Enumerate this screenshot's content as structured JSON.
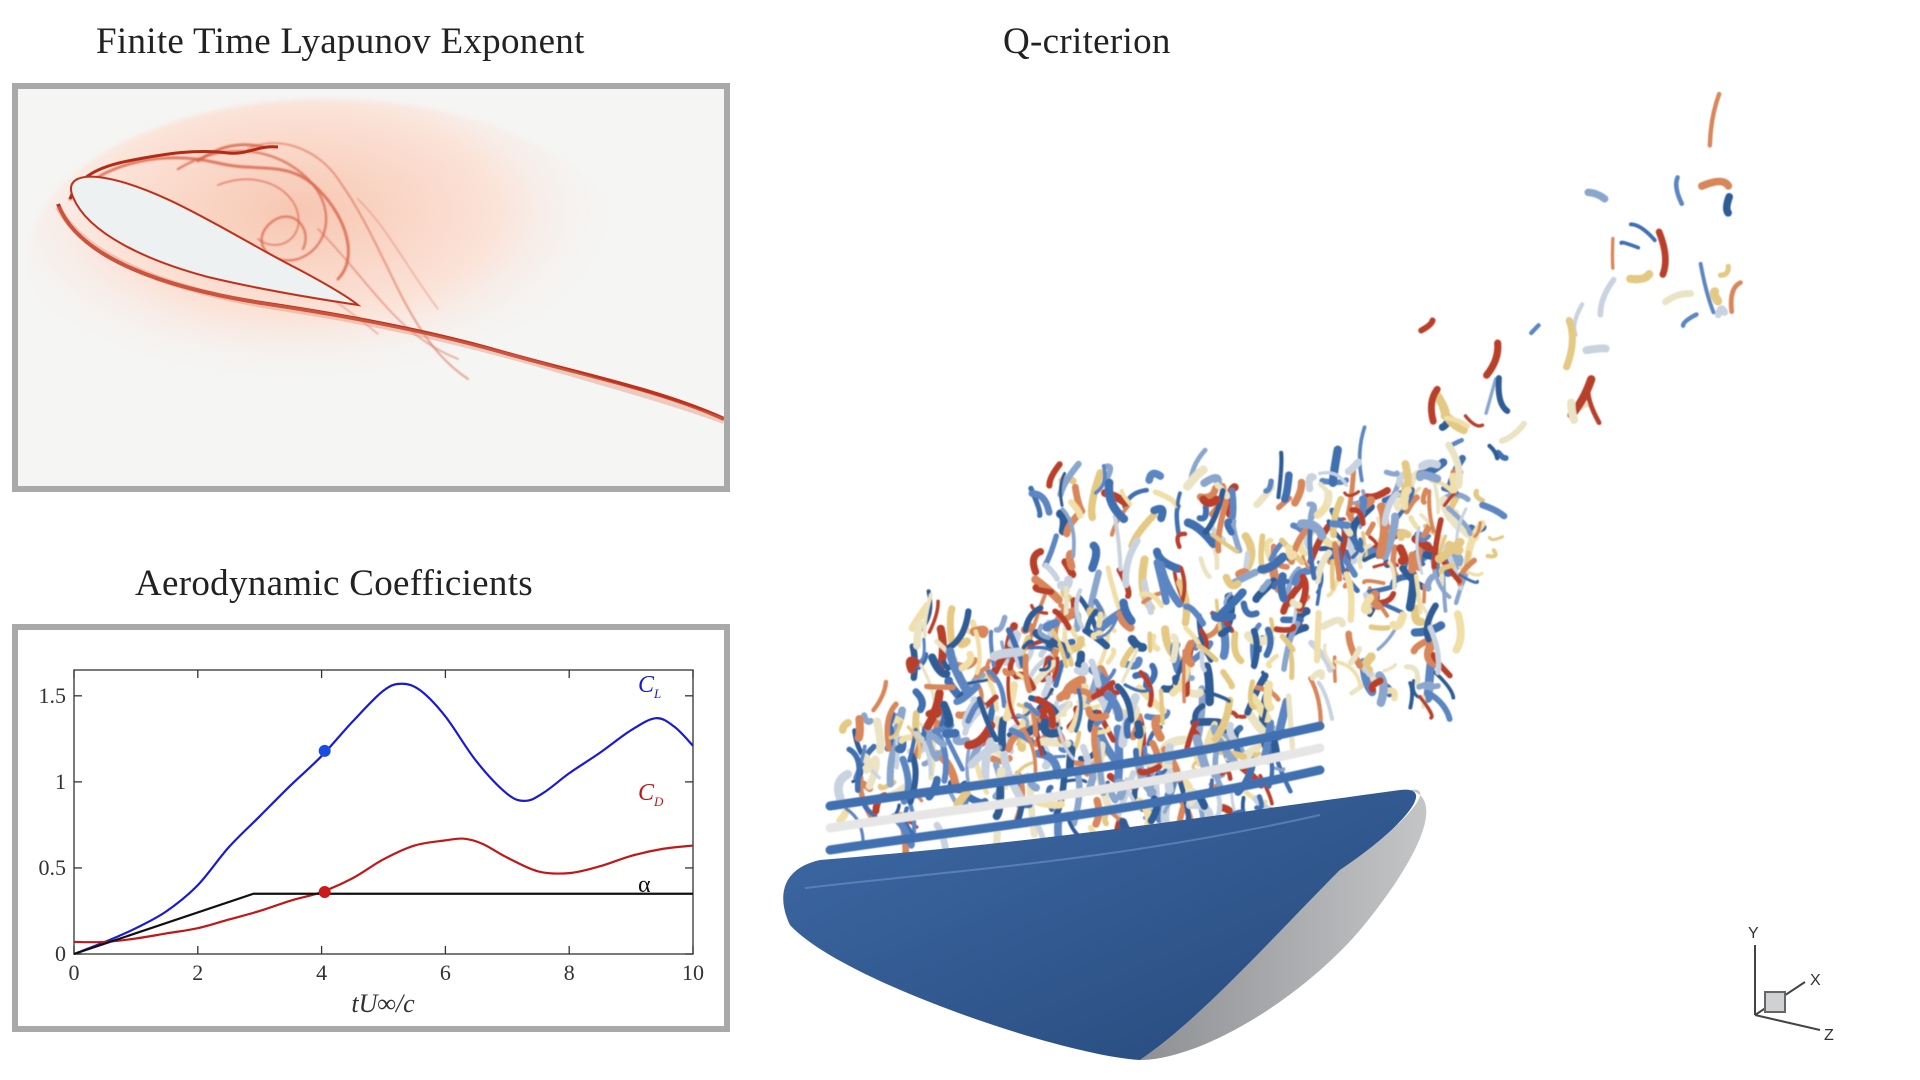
{
  "titles": {
    "ftle": "Finite Time Lyapunov Exponent",
    "qcriterion": "Q-criterion",
    "aero": "Aerodynamic Coefficients"
  },
  "axes_triad": {
    "y": "Y",
    "x": "X",
    "z": "Z"
  },
  "colors": {
    "cl": "#1a1ad6",
    "cd": "#c01818",
    "alpha": "#111111",
    "ftle_ridge": "#c0311c",
    "wing": "#2f5b94",
    "wing_side": "#a9abad"
  },
  "chart_data": {
    "type": "line",
    "xlabel": "tU∞/c",
    "x_ticks": [
      "0",
      "2",
      "4",
      "6",
      "8",
      "10"
    ],
    "y_ticks": [
      "0",
      "0.5",
      "1",
      "1.5"
    ],
    "xlim": [
      0,
      10
    ],
    "ylim": [
      0,
      1.65
    ],
    "grid": false,
    "series": [
      {
        "name": "C_L",
        "label_main": "C",
        "label_sub": "L",
        "color": "#1a1ad6",
        "x": [
          0,
          0.5,
          1,
          1.5,
          2,
          2.5,
          3,
          3.5,
          4,
          4.5,
          5,
          5.3,
          5.6,
          6,
          6.5,
          7,
          7.3,
          7.6,
          8,
          8.5,
          9,
          9.4,
          9.7,
          10
        ],
        "y": [
          0.0,
          0.07,
          0.15,
          0.25,
          0.4,
          0.62,
          0.8,
          0.98,
          1.15,
          1.35,
          1.53,
          1.57,
          1.53,
          1.38,
          1.12,
          0.93,
          0.89,
          0.94,
          1.05,
          1.17,
          1.3,
          1.37,
          1.32,
          1.21
        ]
      },
      {
        "name": "C_D",
        "label_main": "C",
        "label_sub": "D",
        "color": "#c01818",
        "x": [
          0,
          0.5,
          1,
          1.5,
          2,
          2.5,
          3,
          3.5,
          4,
          4.5,
          5,
          5.5,
          6,
          6.3,
          6.6,
          7,
          7.5,
          8,
          8.5,
          9,
          9.5,
          10
        ],
        "y": [
          0.07,
          0.07,
          0.09,
          0.12,
          0.15,
          0.2,
          0.25,
          0.31,
          0.36,
          0.44,
          0.55,
          0.63,
          0.66,
          0.67,
          0.64,
          0.56,
          0.48,
          0.47,
          0.51,
          0.57,
          0.61,
          0.63
        ]
      },
      {
        "name": "α",
        "label_main": "α",
        "label_sub": "",
        "color": "#111111",
        "x": [
          0,
          2.9,
          10
        ],
        "y": [
          0.0,
          0.35,
          0.35
        ]
      }
    ],
    "markers": [
      {
        "series": "C_L",
        "x": 4.05,
        "y": 1.18,
        "color": "#1a4de0"
      },
      {
        "series": "C_D",
        "x": 4.05,
        "y": 0.36,
        "color": "#cc1a1a"
      }
    ]
  }
}
